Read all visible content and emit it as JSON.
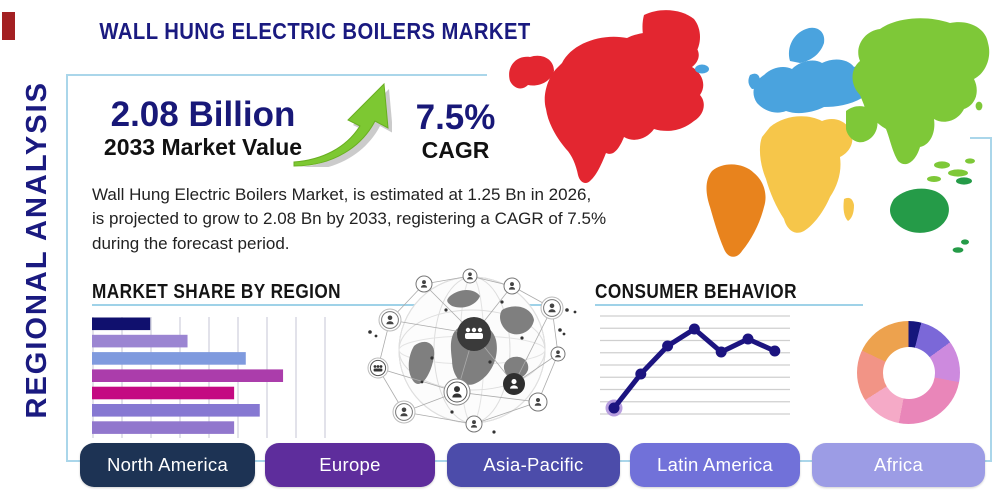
{
  "title": "WALL HUNG ELECTRIC BOILERS MARKET",
  "side_label": "REGIONAL ANALYSIS",
  "stats": {
    "market_value": "2.08 Billion",
    "market_value_label": "2033 Market Value",
    "cagr_value": "7.5%",
    "cagr_label": "CAGR"
  },
  "description": "Wall Hung Electric Boilers Market, is estimated at 1.25 Bn in 2026, is projected to grow to 2.08 Bn by 2033, registering a CAGR of 7.5% during the forecast period.",
  "sections": {
    "market_share_heading": "MARKET SHARE BY REGION",
    "consumer_behavior_heading": "CONSUMER BEHAVIOR"
  },
  "icons": {
    "trend_up_arrow": "growth-arrow-up-right",
    "globe_network": "connected-world-globe"
  },
  "colors": {
    "brand_navy": "#1a1a80",
    "frame_blue": "#aad6ea",
    "arrow_green": "#7dc832",
    "accent_red": "#a32022"
  },
  "map": {
    "regions": {
      "north_america": "#e32630",
      "south_america": "#e8831d",
      "europe": "#4aa3de",
      "africa": "#f6c64a",
      "asia": "#7ec838",
      "oceania": "#259b48"
    }
  },
  "chart_data": [
    {
      "id": "market_share_bars",
      "type": "bar",
      "title": "MARKET SHARE BY REGION",
      "orientation": "horizontal",
      "values_pct": [
        25,
        41,
        66,
        82,
        61,
        72,
        61
      ],
      "bar_colors": [
        "#10106e",
        "#9b85d2",
        "#7f9ade",
        "#ab3dab",
        "#c40a82",
        "#8678d2",
        "#9177cd"
      ],
      "xlim": [
        0,
        100
      ],
      "grid": true,
      "gridline_count": 9
    },
    {
      "id": "consumer_behavior_line",
      "type": "line",
      "title": "CONSUMER BEHAVIOR",
      "x": [
        0,
        1,
        2,
        3,
        4,
        5,
        6
      ],
      "y": [
        1.0,
        4.4,
        7.2,
        8.9,
        6.6,
        7.9,
        6.7
      ],
      "ylim": [
        0,
        10
      ],
      "line_color": "#1c1480",
      "first_point_halo": "#b49add",
      "grid": true,
      "gridline_count": 9
    },
    {
      "id": "regional_donut",
      "type": "pie",
      "donut": true,
      "slices": [
        {
          "pct": 4,
          "color": "#16167d"
        },
        {
          "pct": 11,
          "color": "#7b68d8"
        },
        {
          "pct": 13,
          "color": "#cd8ade"
        },
        {
          "pct": 25,
          "color": "#e986b9"
        },
        {
          "pct": 13,
          "color": "#f5aac7"
        },
        {
          "pct": 16,
          "color": "#f29486"
        },
        {
          "pct": 18,
          "color": "#eda24e"
        }
      ]
    }
  ],
  "buttons": [
    {
      "label": "North America",
      "color": "#1d3354"
    },
    {
      "label": "Europe",
      "color": "#5e2d9c"
    },
    {
      "label": "Asia-Pacific",
      "color": "#4c4caa"
    },
    {
      "label": "Latin America",
      "color": "#7171d9"
    },
    {
      "label": "Africa",
      "color": "#9c9ce5"
    }
  ]
}
